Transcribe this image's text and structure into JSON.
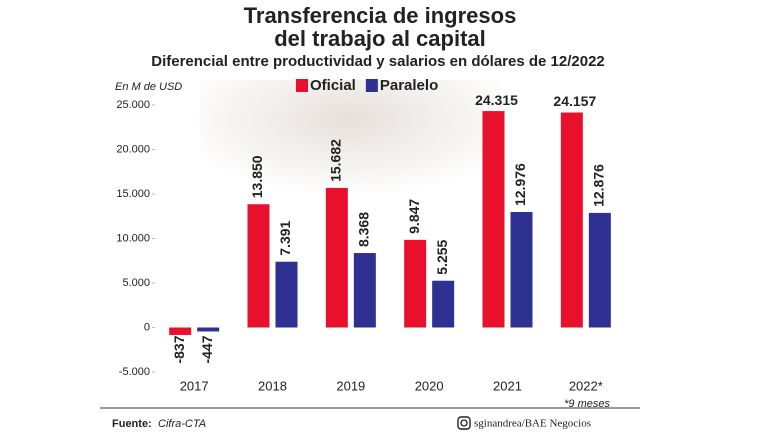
{
  "chart_data": {
    "type": "bar",
    "title": [
      "Transferencia de ingresos",
      "del trabajo al capital"
    ],
    "subtitle": "Diferencial entre productividad y salarios en dólares de 12/2022",
    "y_axis_label": "En M de USD",
    "categories": [
      "2017",
      "2018",
      "2019",
      "2020",
      "2021",
      "2022*"
    ],
    "series": [
      {
        "name": "Oficial",
        "color": "#e8102a",
        "values": [
          -837,
          13850,
          15682,
          9847,
          24315,
          24157
        ],
        "value_labels": [
          "-837",
          "13.850",
          "15.682",
          "9.847",
          "24.315",
          "24.157"
        ]
      },
      {
        "name": "Paralelo",
        "color": "#2e3192",
        "values": [
          -447,
          7391,
          8368,
          5255,
          12976,
          12876
        ],
        "value_labels": [
          "-447",
          "7.391",
          "8.368",
          "5.255",
          "12.976",
          "12.876"
        ]
      }
    ],
    "ylim": [
      -5000,
      25000
    ],
    "yticks": [
      {
        "value": -5000,
        "label": "-5.000"
      },
      0,
      {
        "value": 5000,
        "label": "5.000"
      },
      {
        "value": 10000,
        "label": "10.000"
      },
      {
        "value": 15000,
        "label": "15.000"
      },
      {
        "value": 20000,
        "label": "20.000"
      },
      {
        "value": 25000,
        "label": "25.000"
      }
    ],
    "legend": "top",
    "note": "*9 meses",
    "source_label": "Fuente:",
    "source": "Cifra-CTA",
    "credit": "sginandrea/BAE Negocios"
  }
}
